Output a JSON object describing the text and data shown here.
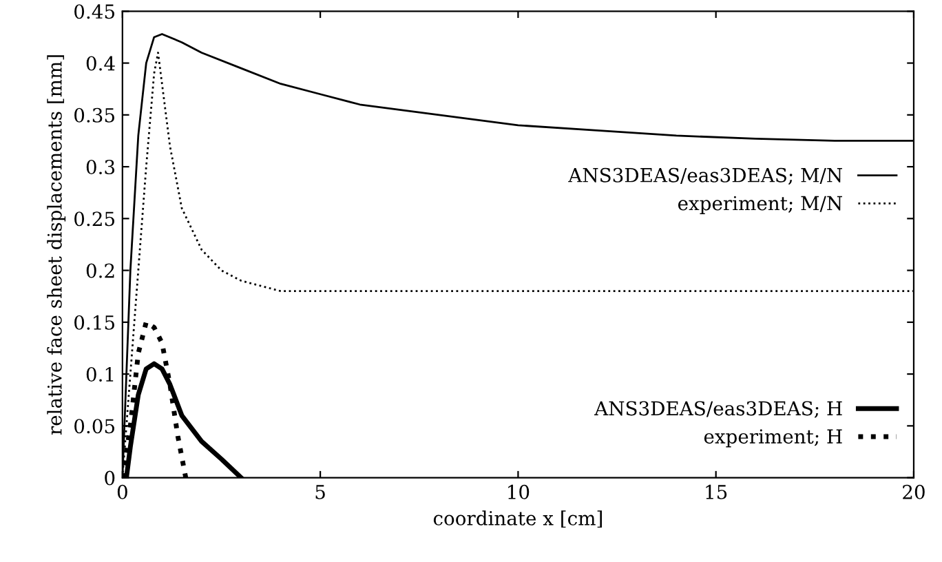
{
  "chart_data": {
    "type": "line",
    "xlabel": "coordinate x [cm]",
    "ylabel": "relative face sheet displacements [mm]",
    "xlim": [
      0,
      20
    ],
    "ylim": [
      0,
      0.45
    ],
    "xticks": [
      0,
      5,
      10,
      15,
      20
    ],
    "yticks": [
      0,
      0.05,
      0.1,
      0.15,
      0.2,
      0.25,
      0.3,
      0.35,
      0.4,
      0.45
    ],
    "grid": false,
    "legend": "right",
    "series": [
      {
        "name": "ANS3DEAS/eas3DEAS; M/N",
        "color": "#000000",
        "line_style": "solid",
        "x": [
          0,
          0.2,
          0.4,
          0.6,
          0.8,
          1.0,
          1.5,
          2,
          3,
          4,
          5,
          6,
          8,
          10,
          12,
          14,
          16,
          18,
          20
        ],
        "values": [
          0,
          0.2,
          0.33,
          0.4,
          0.425,
          0.428,
          0.42,
          0.41,
          0.395,
          0.38,
          0.37,
          0.36,
          0.35,
          0.34,
          0.335,
          0.33,
          0.327,
          0.325,
          0.325
        ]
      },
      {
        "name": "experiment; M/N",
        "color": "#000000",
        "line_style": "dotted",
        "x": [
          0,
          0.2,
          0.4,
          0.6,
          0.8,
          0.9,
          1.0,
          1.2,
          1.5,
          2,
          2.5,
          3,
          3.5,
          4,
          5,
          20
        ],
        "values": [
          0,
          0.1,
          0.2,
          0.3,
          0.39,
          0.41,
          0.38,
          0.32,
          0.26,
          0.22,
          0.2,
          0.19,
          0.185,
          0.18,
          0.18,
          0.18
        ]
      },
      {
        "name": "ANS3DEAS/eas3DEAS; H",
        "color": "#000000",
        "line_style": "solid",
        "x": [
          0.1,
          0.2,
          0.4,
          0.6,
          0.8,
          1.0,
          1.2,
          1.5,
          2,
          2.5,
          3
        ],
        "values": [
          0,
          0.03,
          0.08,
          0.105,
          0.11,
          0.105,
          0.09,
          0.06,
          0.035,
          0.018,
          0
        ]
      },
      {
        "name": "experiment; H",
        "color": "#000000",
        "line_style": "dotted",
        "x": [
          0,
          0.2,
          0.4,
          0.6,
          0.8,
          1.0,
          1.2,
          1.4,
          1.6
        ],
        "values": [
          0,
          0.05,
          0.12,
          0.15,
          0.145,
          0.13,
          0.09,
          0.04,
          0
        ]
      }
    ]
  }
}
